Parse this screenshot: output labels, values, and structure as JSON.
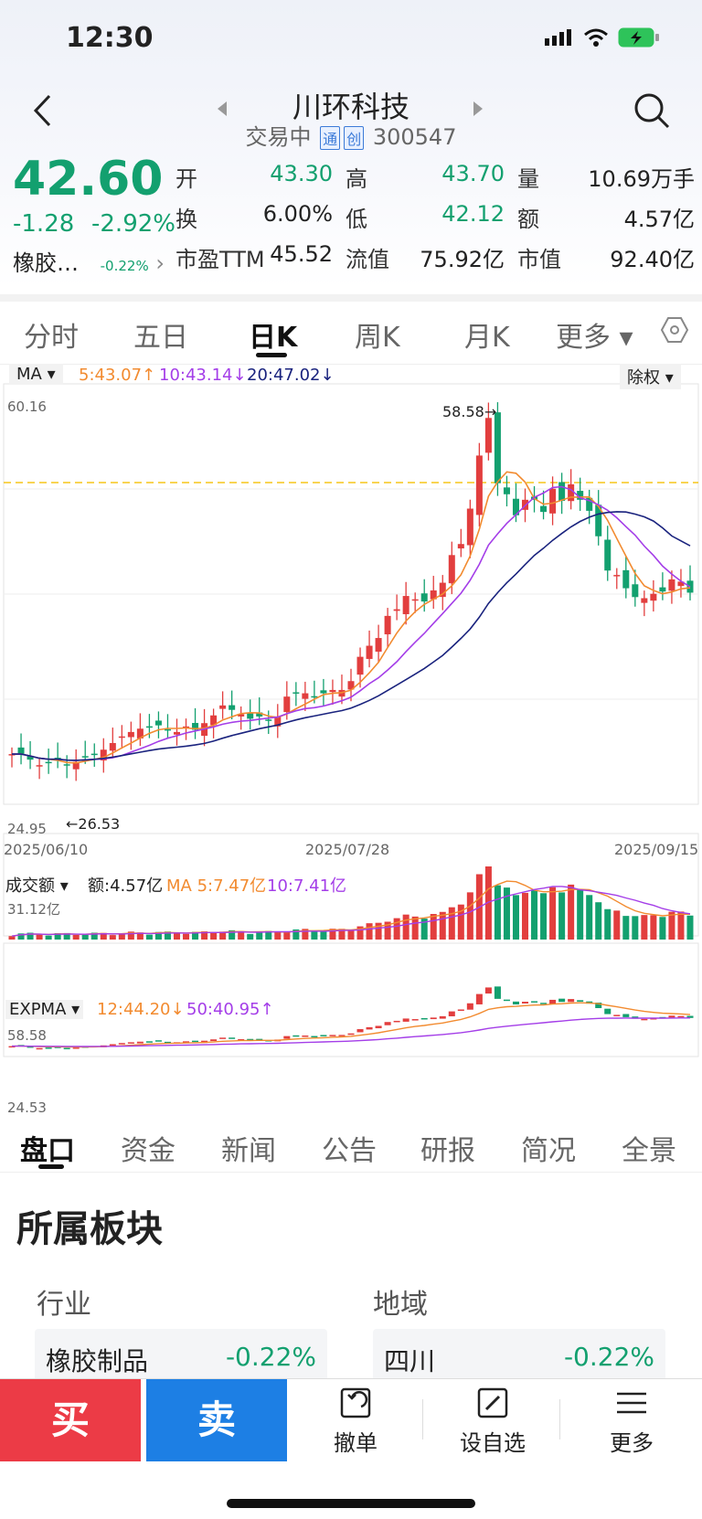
{
  "status": {
    "time": "12:30"
  },
  "header": {
    "title": "川环科技",
    "status": "交易中",
    "tag1": "通",
    "tag2": "创",
    "code": "300547"
  },
  "quote": {
    "price": "42.60",
    "change": "-1.28",
    "change_pct": "-2.92%",
    "sector_name": "橡胶…",
    "sector_pct": "-0.22%",
    "open_label": "开",
    "open": "43.30",
    "high_label": "高",
    "high": "43.70",
    "volume_label": "量",
    "volume": "10.69万手",
    "turnover_label": "换",
    "turnover": "6.00%",
    "low_label": "低",
    "low": "42.12",
    "amount_label": "额",
    "amount": "4.57亿",
    "pe_label": "市盈TTM",
    "pe": "45.52",
    "float_cap_label": "流值",
    "float_cap": "75.92亿",
    "mkt_cap_label": "市值",
    "mkt_cap": "92.40亿"
  },
  "chart_tabs": [
    "分时",
    "五日",
    "日K",
    "周K",
    "月K",
    "更多 ▾"
  ],
  "kline": {
    "indicator": "MA ▾",
    "ma5": "5:43.07↑",
    "ma10": "10:43.14↓",
    "ma20": "20:47.02↓",
    "adjust": "除权 ▾",
    "y_top": "60.16",
    "y_bottom": "24.95",
    "max_label": "58.58",
    "min_label": "26.53",
    "dates": [
      "2025/06/10",
      "2025/07/28",
      "2025/09/15"
    ],
    "vol_title": "成交额 ▾",
    "vol_amount": "额:4.57亿",
    "vol_ma5": "MA 5:7.47亿",
    "vol_ma10": "10:7.41亿",
    "vol_top": "31.12亿",
    "expma_title": "EXPMA ▾",
    "expma12": "12:44.20↓",
    "expma50": "50:40.95↑",
    "expma_top": "58.58",
    "expma_bottom": "24.53"
  },
  "colors": {
    "up": "#e23e3e",
    "down": "#13a06f",
    "ma5": "#f28b30",
    "ma10": "#a43ee8",
    "ma20": "#1a237e"
  },
  "chart_data": {
    "type": "candlestick",
    "x_range": [
      "2025/06/10",
      "2025/09/15"
    ],
    "ylim": [
      24.95,
      60.16
    ],
    "marks": {
      "high": 58.58,
      "low": 26.53
    },
    "close_approx": [
      28,
      28,
      27.5,
      27,
      27.2,
      27.5,
      27,
      27.3,
      27.8,
      28,
      28.4,
      29,
      29.6,
      30,
      30.3,
      30.5,
      30.6,
      30.2,
      30,
      30.5,
      30.2,
      30.8,
      31.5,
      32.4,
      32,
      31.6,
      31.2,
      31.4,
      31,
      31.4,
      33.2,
      33.5,
      33.5,
      33.2,
      33.5,
      33.8,
      33.8,
      34.6,
      36.8,
      37.8,
      38.5,
      40.5,
      41.1,
      42.3,
      42,
      41.8,
      42.8,
      43.5,
      46,
      47,
      50.2,
      55,
      58.4,
      52.5,
      51.5,
      49.6,
      51,
      51,
      49.9,
      52,
      50.9,
      52.4,
      51,
      50,
      47.7,
      44.6,
      44.2,
      43,
      42.2,
      42.1,
      42.5,
      42.7,
      43.8,
      43.6,
      42.6
    ],
    "volume_note": "成交额 bars follow price, peak ~31.12亿"
  },
  "bottom_tabs": [
    "盘口",
    "资金",
    "新闻",
    "公告",
    "研报",
    "简况",
    "全景"
  ],
  "sector": {
    "heading": "所属板块",
    "industry_label": "行业",
    "region_label": "地域",
    "industry_name": "橡胶制品",
    "industry_pct": "-0.22%",
    "region_name": "四川",
    "region_pct": "-0.22%"
  },
  "actions": {
    "buy": "买",
    "sell": "卖",
    "cancel": "撤单",
    "watchlist": "设自选",
    "more": "更多"
  }
}
